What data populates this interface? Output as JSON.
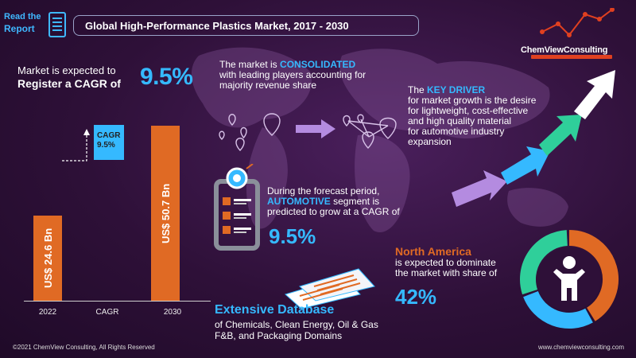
{
  "header": {
    "read_line1": "Read the",
    "read_line2": "Report",
    "title": "Global High-Performance Plastics Market, 2017  - 2030"
  },
  "logo": {
    "name": "ChemViewConsulting"
  },
  "market": {
    "line1": "Market is expected to",
    "line2": "Register a CAGR of",
    "cagr": "9.5%"
  },
  "chart_data": {
    "type": "bar",
    "categories": [
      "2022",
      "CAGR",
      "2030"
    ],
    "values": [
      24.6,
      null,
      50.7
    ],
    "bar_labels": [
      "US$ 24.6 Bn",
      "",
      "US$ 50.7 Bn"
    ],
    "cagr_box": {
      "label": "CAGR",
      "value": "9.5%"
    },
    "ylim": [
      0,
      60
    ],
    "colors": {
      "bar": "#e06a24",
      "cagr_box": "#35b9ff"
    }
  },
  "consolidated": {
    "pre": "The market is ",
    "highlight": "CONSOLIDATED",
    "line2": "with leading players accounting for",
    "line3": "majority revenue share"
  },
  "driver": {
    "pre": "The ",
    "highlight": "KEY DRIVER",
    "lines": [
      "for market growth is the desire",
      "for lightweight, cost-effective",
      "and high quality material",
      "for automotive industry",
      "expansion"
    ]
  },
  "forecast": {
    "line1": "During the forecast period,",
    "highlight": "AUTOMOTIVE",
    "line2_rest": " segment is",
    "line3": "predicted to grow at a CAGR of",
    "value": "9.5%"
  },
  "region": {
    "name": "North America",
    "line1": "is expected to dominate",
    "line2": "the market with share of",
    "value": "42%",
    "donut": [
      {
        "share": 42,
        "color": "#e06a24"
      },
      {
        "share": 28,
        "color": "#35b9ff"
      },
      {
        "share": 30,
        "color": "#2fcf9a"
      }
    ]
  },
  "database": {
    "title": "Extensive Database",
    "line1": "of Chemicals, Clean Energy, Oil & Gas",
    "line2": "F&B, and Packaging Domains"
  },
  "footer": {
    "copyright": "©2021  ChemView  Consulting,  All Rights Reserved",
    "url": "www.chemviewconsulting.com"
  },
  "colors": {
    "accent": "#35b9ff",
    "orange": "#e06a24",
    "green": "#2fcf9a",
    "purple": "#b48be0"
  }
}
